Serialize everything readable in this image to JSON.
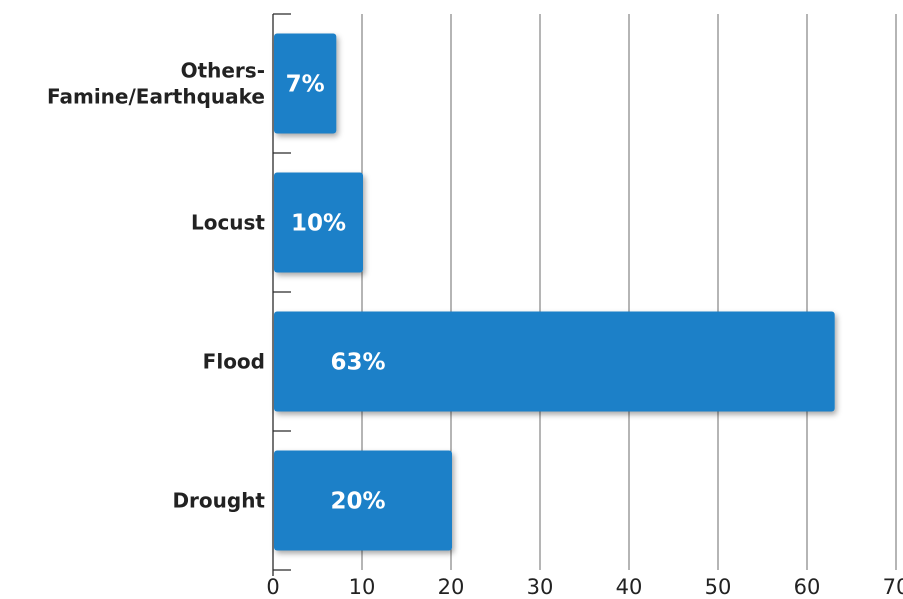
{
  "chart_data": {
    "type": "bar",
    "orientation": "horizontal",
    "title": "",
    "xlabel": "",
    "ylabel": "",
    "categories": [
      "Others-\nFamine/Earthquake",
      "Locust",
      "Flood",
      "Drought"
    ],
    "values": [
      7,
      10,
      63,
      20
    ],
    "data_labels": [
      "7%",
      "10%",
      "63%",
      "20%"
    ],
    "xlim": [
      0,
      70
    ],
    "xticks": [
      0,
      10,
      20,
      30,
      40,
      50,
      60,
      70
    ],
    "grid": true,
    "legend": "none",
    "colors": {
      "bar": "#1a80c8",
      "grid": "#6b6b6b",
      "label_text": "#222222",
      "data_label_text": "#ffffff"
    }
  }
}
